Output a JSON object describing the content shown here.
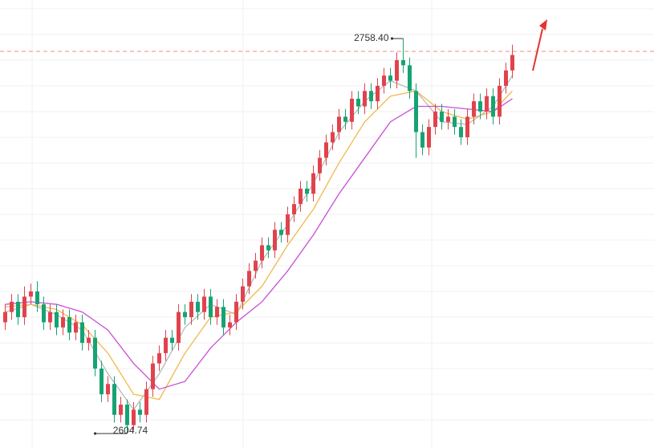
{
  "chart_data": {
    "type": "candlestick",
    "ylim": [
      2599.1,
      2773.4
    ],
    "gridlines": [
      2610,
      2620,
      2630,
      2640,
      2650,
      2660,
      2670,
      2680,
      2690,
      2700,
      2710,
      2720,
      2730,
      2740,
      2750,
      2760,
      2770
    ],
    "grid": true,
    "up_color": "#e0434d",
    "down_color": "#16a373",
    "open": [
      2648,
      2652,
      2656,
      2650,
      2658,
      2660,
      2655,
      2648,
      2652,
      2646,
      2650,
      2644,
      2648,
      2640,
      2642,
      2630,
      2620,
      2624,
      2612,
      2616,
      2608,
      2614,
      2612,
      2622,
      2632,
      2636,
      2642,
      2640,
      2652,
      2650,
      2656,
      2652,
      2658,
      2650,
      2654,
      2646,
      2648,
      2656,
      2662,
      2668,
      2672,
      2678,
      2676,
      2684,
      2682,
      2690,
      2694,
      2700,
      2698,
      2706,
      2712,
      2718,
      2722,
      2728,
      2726,
      2735,
      2732,
      2738,
      2734,
      2740,
      2744,
      2742,
      2750,
      2748,
      2738,
      2722,
      2716,
      2724,
      2730,
      2726,
      2728,
      2724,
      2720,
      2728,
      2734,
      2730,
      2736,
      2728,
      2740,
      2746
    ],
    "high": [
      2655,
      2659,
      2659,
      2662,
      2663,
      2664,
      2658,
      2655,
      2655,
      2653,
      2653,
      2651,
      2651,
      2645,
      2645,
      2633,
      2627,
      2627,
      2619,
      2618,
      2617,
      2617,
      2625,
      2635,
      2639,
      2645,
      2645,
      2655,
      2655,
      2659,
      2659,
      2661,
      2661,
      2657,
      2657,
      2651,
      2659,
      2665,
      2671,
      2675,
      2681,
      2681,
      2687,
      2687,
      2693,
      2697,
      2703,
      2703,
      2709,
      2715,
      2721,
      2725,
      2731,
      2731,
      2738,
      2738,
      2741,
      2741,
      2743,
      2747,
      2747,
      2753,
      2758.4,
      2751,
      2741,
      2725,
      2727,
      2733,
      2733,
      2731,
      2731,
      2727,
      2731,
      2737,
      2737,
      2739,
      2739,
      2743,
      2749,
      2756
    ],
    "low": [
      2645,
      2649,
      2647,
      2647,
      2655,
      2652,
      2645,
      2645,
      2643,
      2643,
      2641,
      2641,
      2637,
      2637,
      2627,
      2617,
      2617,
      2609,
      2609,
      2604.74,
      2606,
      2609,
      2609,
      2619,
      2629,
      2633,
      2637,
      2637,
      2647,
      2647,
      2649,
      2649,
      2647,
      2647,
      2643,
      2643,
      2645,
      2653,
      2659,
      2665,
      2669,
      2673,
      2673,
      2679,
      2679,
      2687,
      2691,
      2695,
      2695,
      2703,
      2709,
      2715,
      2719,
      2723,
      2723,
      2729,
      2729,
      2731,
      2731,
      2737,
      2739,
      2739,
      2745,
      2735,
      2712,
      2713,
      2713,
      2721,
      2723,
      2723,
      2721,
      2717,
      2717,
      2725,
      2727,
      2727,
      2725,
      2725,
      2737,
      2743
    ],
    "close": [
      2652,
      2656,
      2650,
      2658,
      2660,
      2655,
      2648,
      2652,
      2646,
      2650,
      2644,
      2648,
      2640,
      2642,
      2630,
      2620,
      2624,
      2612,
      2616,
      2608,
      2614,
      2612,
      2622,
      2632,
      2636,
      2642,
      2640,
      2652,
      2650,
      2656,
      2652,
      2658,
      2650,
      2654,
      2646,
      2648,
      2656,
      2662,
      2668,
      2672,
      2678,
      2676,
      2684,
      2682,
      2690,
      2694,
      2700,
      2698,
      2706,
      2712,
      2718,
      2722,
      2728,
      2726,
      2735,
      2732,
      2738,
      2734,
      2740,
      2744,
      2742,
      2750,
      2748,
      2738,
      2722,
      2716,
      2724,
      2730,
      2726,
      2728,
      2724,
      2720,
      2728,
      2734,
      2730,
      2736,
      2728,
      2740,
      2746,
      2752
    ],
    "averages": [
      {
        "color": "#b9b9b9",
        "x": [
          0,
          4,
          8,
          12,
          16,
          20,
          24,
          28,
          32,
          36,
          40,
          44,
          48,
          52,
          56,
          60,
          64,
          68,
          72,
          76,
          79
        ],
        "values": [
          2652,
          2655,
          2651,
          2645,
          2628,
          2614,
          2628,
          2646,
          2655,
          2651,
          2672,
          2686,
          2702,
          2722,
          2734,
          2742,
          2738,
          2726,
          2725,
          2732,
          2744
        ]
      },
      {
        "color": "#f2b84b",
        "x": [
          0,
          4,
          8,
          12,
          16,
          20,
          24,
          28,
          32,
          36,
          40,
          44,
          48,
          52,
          56,
          60,
          64,
          68,
          72,
          76,
          79
        ],
        "values": [
          2654,
          2655,
          2653,
          2647,
          2636,
          2620,
          2618,
          2636,
          2650,
          2652,
          2662,
          2678,
          2692,
          2710,
          2726,
          2736,
          2738,
          2730,
          2727,
          2730,
          2738
        ]
      },
      {
        "color": "#c94fd6",
        "x": [
          0,
          4,
          8,
          12,
          16,
          20,
          24,
          28,
          32,
          36,
          40,
          44,
          48,
          52,
          56,
          60,
          64,
          68,
          72,
          76,
          79
        ],
        "values": [
          2655,
          2656,
          2655,
          2652,
          2645,
          2632,
          2622,
          2625,
          2638,
          2648,
          2656,
          2668,
          2682,
          2698,
          2712,
          2726,
          2732,
          2732,
          2731,
          2730,
          2735
        ]
      }
    ],
    "price_line": 2753.4,
    "max_label": "2758.40",
    "min_label": "2604.74"
  }
}
